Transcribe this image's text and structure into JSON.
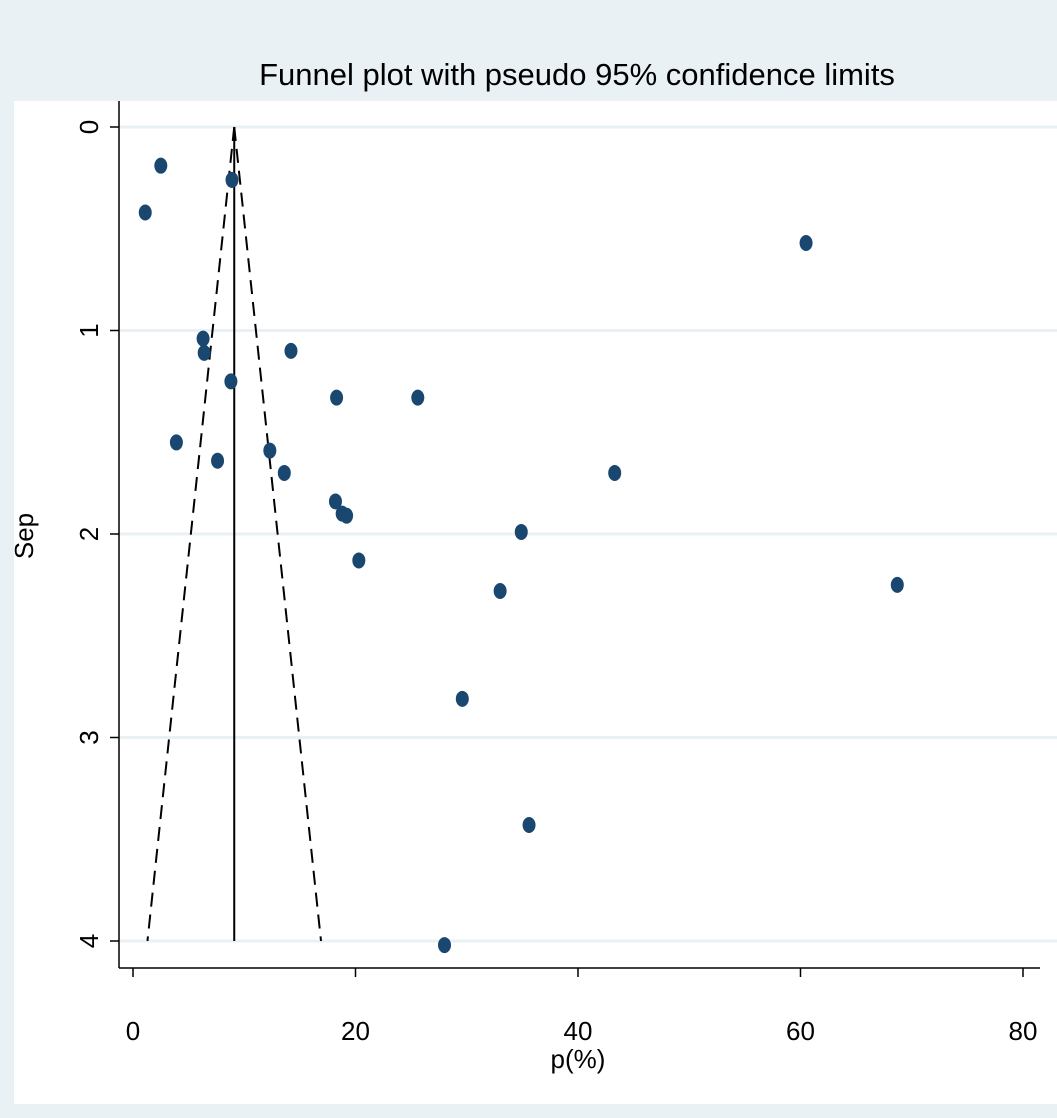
{
  "chart_data": {
    "type": "scatter",
    "title": "Funnel plot with pseudo 95% confidence limits",
    "xlabel": "p(%)",
    "ylabel": "Sep",
    "xlim": [
      -1.5,
      81
    ],
    "ylim": [
      0,
      4.13
    ],
    "y_reversed": true,
    "x_ticks": [
      0,
      20,
      40,
      60,
      80
    ],
    "y_ticks": [
      0,
      1,
      2,
      3,
      4
    ],
    "grid": "horizontal",
    "pooled_estimate": 9.1,
    "confidence_limits": {
      "apex": [
        9.1,
        0
      ],
      "lower_at_max_se": [
        1.3,
        4.0
      ],
      "upper_at_max_se": [
        16.9,
        4.0
      ]
    },
    "points": [
      {
        "x": 2.5,
        "y": 0.19
      },
      {
        "x": 1.1,
        "y": 0.42
      },
      {
        "x": 8.9,
        "y": 0.26
      },
      {
        "x": 60.5,
        "y": 0.57
      },
      {
        "x": 6.3,
        "y": 1.04
      },
      {
        "x": 6.4,
        "y": 1.11
      },
      {
        "x": 14.2,
        "y": 1.1
      },
      {
        "x": 8.8,
        "y": 1.25
      },
      {
        "x": 18.3,
        "y": 1.33
      },
      {
        "x": 25.6,
        "y": 1.33
      },
      {
        "x": 3.9,
        "y": 1.55
      },
      {
        "x": 7.6,
        "y": 1.64
      },
      {
        "x": 12.3,
        "y": 1.59
      },
      {
        "x": 13.6,
        "y": 1.7
      },
      {
        "x": 43.3,
        "y": 1.7
      },
      {
        "x": 18.2,
        "y": 1.84
      },
      {
        "x": 18.8,
        "y": 1.9
      },
      {
        "x": 19.2,
        "y": 1.91
      },
      {
        "x": 34.9,
        "y": 1.99
      },
      {
        "x": 20.3,
        "y": 2.13
      },
      {
        "x": 33.0,
        "y": 2.28
      },
      {
        "x": 68.7,
        "y": 2.25
      },
      {
        "x": 29.6,
        "y": 2.81
      },
      {
        "x": 35.6,
        "y": 3.43
      },
      {
        "x": 28.0,
        "y": 4.02
      }
    ],
    "colors": {
      "background": "#eaf1f4",
      "plot_area": "#ffffff",
      "marker": "#1a476f",
      "grid": "#eaf1f4",
      "line": "#000000"
    }
  }
}
